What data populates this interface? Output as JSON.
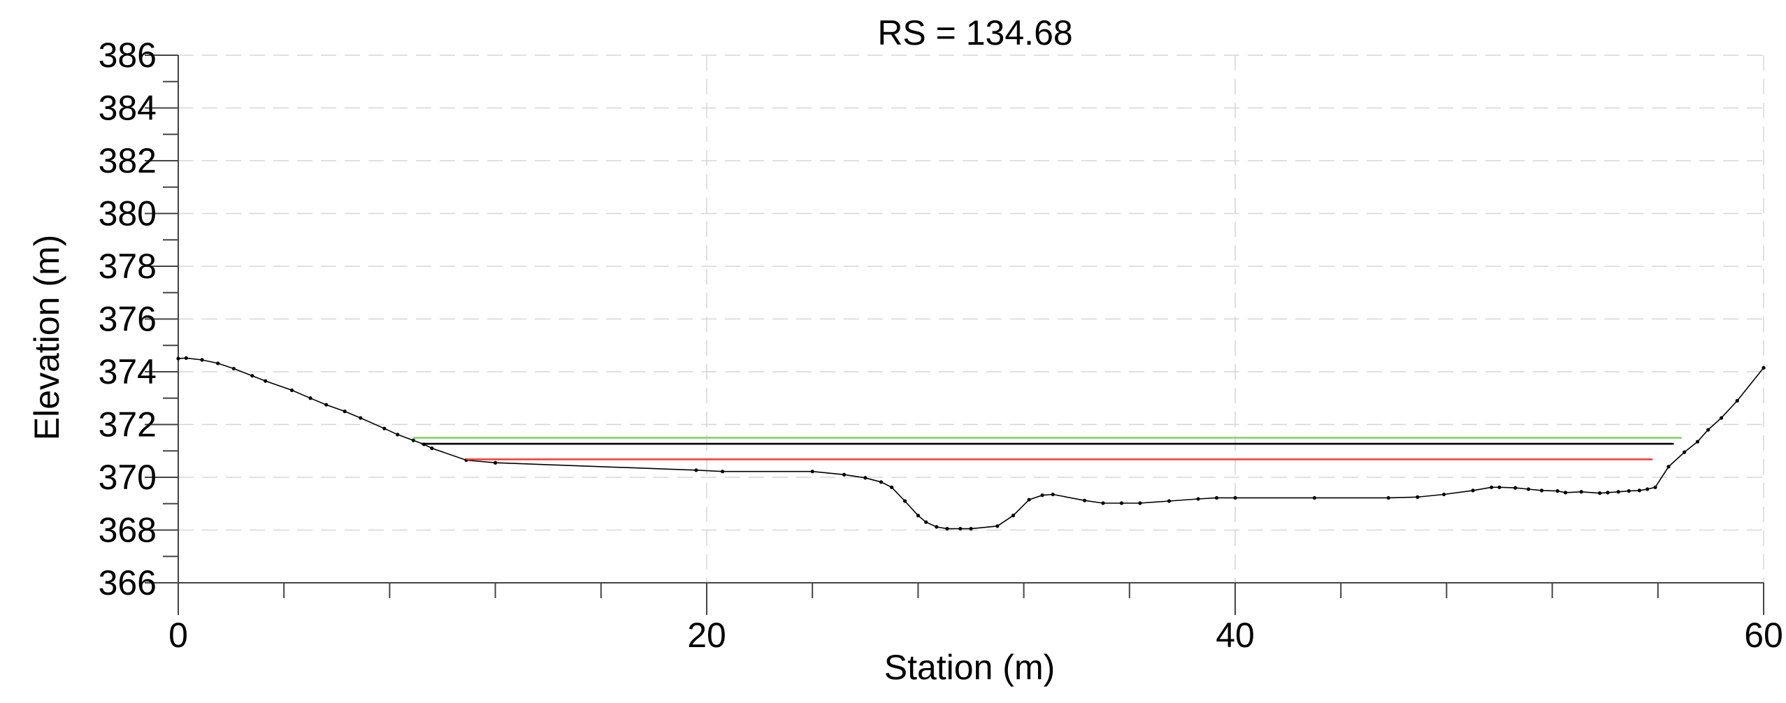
{
  "chart_data": {
    "type": "line",
    "title": "RS = 134.68",
    "xlabel": "Station (m)",
    "ylabel": "Elevation (m)",
    "xlim": [
      0,
      60
    ],
    "ylim": [
      366,
      386
    ],
    "x_ticks": [
      0,
      20,
      40,
      60
    ],
    "x_minor_step": 4,
    "y_ticks": [
      366,
      368,
      370,
      372,
      374,
      376,
      378,
      380,
      382,
      384,
      386
    ],
    "y_minor_step": 1,
    "grid": true,
    "legend": "none",
    "series": [
      {
        "color": "#000000",
        "marker": "dot",
        "points": [
          [
            0.0,
            374.5
          ],
          [
            0.3,
            374.52
          ],
          [
            0.9,
            374.45
          ],
          [
            1.5,
            374.32
          ],
          [
            2.1,
            374.12
          ],
          [
            2.8,
            373.85
          ],
          [
            3.3,
            373.65
          ],
          [
            4.3,
            373.3
          ],
          [
            5.0,
            373.0
          ],
          [
            5.6,
            372.75
          ],
          [
            6.3,
            372.5
          ],
          [
            6.9,
            372.25
          ],
          [
            7.8,
            371.85
          ],
          [
            8.3,
            371.62
          ],
          [
            8.9,
            371.4
          ],
          [
            9.3,
            371.25
          ],
          [
            9.6,
            371.1
          ],
          [
            10.9,
            370.65
          ],
          [
            12.0,
            370.55
          ],
          [
            19.6,
            370.27
          ],
          [
            20.6,
            370.22
          ],
          [
            24.0,
            370.22
          ],
          [
            25.2,
            370.1
          ],
          [
            26.0,
            369.98
          ],
          [
            26.6,
            369.82
          ],
          [
            27.0,
            369.62
          ],
          [
            27.5,
            369.1
          ],
          [
            28.0,
            368.55
          ],
          [
            28.3,
            368.3
          ],
          [
            28.7,
            368.12
          ],
          [
            29.1,
            368.05
          ],
          [
            29.6,
            368.05
          ],
          [
            30.0,
            368.05
          ],
          [
            31.0,
            368.15
          ],
          [
            31.6,
            368.55
          ],
          [
            32.2,
            369.15
          ],
          [
            32.7,
            369.32
          ],
          [
            33.1,
            369.35
          ],
          [
            34.3,
            369.12
          ],
          [
            35.0,
            369.02
          ],
          [
            35.7,
            369.02
          ],
          [
            36.4,
            369.02
          ],
          [
            37.5,
            369.1
          ],
          [
            38.6,
            369.18
          ],
          [
            39.3,
            369.22
          ],
          [
            40.0,
            369.22
          ],
          [
            43.0,
            369.22
          ],
          [
            45.8,
            369.22
          ],
          [
            46.9,
            369.25
          ],
          [
            47.9,
            369.35
          ],
          [
            49.0,
            369.5
          ],
          [
            49.7,
            369.62
          ],
          [
            50.0,
            369.62
          ],
          [
            50.6,
            369.6
          ],
          [
            51.1,
            369.55
          ],
          [
            51.6,
            369.5
          ],
          [
            52.2,
            369.48
          ],
          [
            52.5,
            369.42
          ],
          [
            53.1,
            369.45
          ],
          [
            53.8,
            369.4
          ],
          [
            54.1,
            369.42
          ],
          [
            54.5,
            369.45
          ],
          [
            54.9,
            369.48
          ],
          [
            55.3,
            369.5
          ],
          [
            55.6,
            369.55
          ],
          [
            55.9,
            369.62
          ],
          [
            56.4,
            370.4
          ],
          [
            57.0,
            370.95
          ],
          [
            57.5,
            371.35
          ],
          [
            57.9,
            371.8
          ],
          [
            58.4,
            372.25
          ],
          [
            59.0,
            372.9
          ],
          [
            60.0,
            374.15
          ]
        ]
      },
      {
        "color": "#7fd56a",
        "marker": "none",
        "points": [
          [
            8.9,
            371.5
          ],
          [
            56.9,
            371.5
          ]
        ]
      },
      {
        "color": "#000000",
        "marker": "none",
        "points": [
          [
            9.2,
            371.27
          ],
          [
            56.6,
            371.27
          ]
        ]
      },
      {
        "color": "#ff3a3a",
        "marker": "none",
        "points": [
          [
            10.9,
            370.68
          ],
          [
            55.8,
            370.68
          ]
        ]
      }
    ]
  }
}
